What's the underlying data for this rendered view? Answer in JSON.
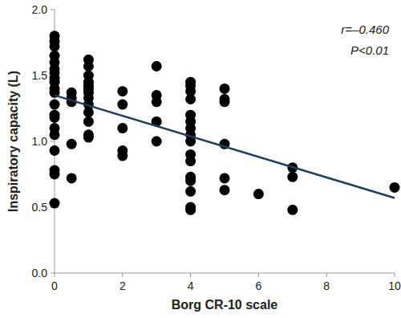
{
  "chart_data": {
    "type": "scatter",
    "x_label": "Borg CR-10 scale",
    "y_label": "Inspiratory capacity (L)",
    "annotations": [
      "r=–0.460",
      "P<0.01"
    ],
    "color": "#000000",
    "marker": "circle",
    "grid": false,
    "xlim": [
      0,
      10
    ],
    "xticks": [
      0,
      2,
      4,
      6,
      8,
      10
    ],
    "ylim": [
      0,
      2
    ],
    "yticks": [
      {
        "value": 0,
        "label": "0.0"
      },
      {
        "value": 0.5,
        "label": "0.5"
      },
      {
        "value": 1,
        "label": "1.0"
      },
      {
        "value": 1.5,
        "label": "1.5"
      },
      {
        "value": 2,
        "label": "2.0"
      }
    ],
    "x": [
      0,
      0,
      0,
      0,
      0,
      0,
      0,
      0,
      0,
      0,
      0,
      0,
      0,
      0,
      0,
      0,
      0,
      0,
      0,
      0,
      0.5,
      0.5,
      0.5,
      0.5,
      0.5,
      1,
      1,
      1,
      1,
      1,
      1,
      1,
      1,
      1,
      1,
      1,
      1,
      1,
      2,
      2,
      2,
      2,
      2,
      3,
      3,
      3,
      3,
      3,
      4,
      4,
      4,
      4,
      4,
      4,
      4,
      4,
      4,
      4,
      4,
      4,
      4,
      4,
      4,
      4,
      5,
      5,
      5,
      5,
      5,
      5,
      6,
      7,
      7,
      7,
      10
    ],
    "values": [
      1.8,
      1.76,
      1.72,
      1.65,
      1.6,
      1.55,
      1.52,
      1.48,
      1.45,
      1.4,
      1.37,
      1.28,
      1.2,
      1.18,
      1.1,
      1.05,
      0.93,
      0.78,
      0.75,
      0.53,
      1.37,
      1.33,
      1.3,
      0.98,
      0.72,
      1.62,
      1.57,
      1.5,
      1.45,
      1.42,
      1.4,
      1.37,
      1.33,
      1.28,
      1.22,
      1.15,
      1.05,
      1.03,
      1.38,
      1.28,
      1.1,
      0.93,
      0.89,
      1.57,
      1.35,
      1.3,
      1.15,
      1.0,
      1.45,
      1.42,
      1.38,
      1.32,
      1.2,
      1.15,
      1.1,
      1.05,
      1.0,
      0.9,
      0.85,
      0.73,
      0.7,
      0.62,
      0.5,
      0.48,
      1.4,
      1.32,
      1.3,
      0.98,
      0.72,
      0.63,
      0.6,
      0.8,
      0.73,
      0.48,
      0.65
    ],
    "trendline": {
      "x": [
        0,
        10
      ],
      "values": [
        1.35,
        0.57
      ],
      "color": "#1f3d5c",
      "line_style": "solid"
    }
  }
}
